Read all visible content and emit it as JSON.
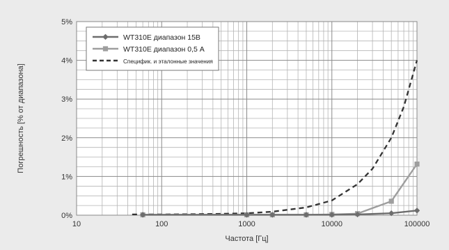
{
  "chart_data": {
    "type": "line",
    "title": "",
    "xlabel": "Частота [Гц]",
    "ylabel": "Погрешность [% от диапазона]",
    "xscale": "log",
    "xlim": [
      10,
      100000
    ],
    "ylim": [
      0,
      5
    ],
    "x_ticks": [
      10,
      100,
      1000,
      10000,
      100000
    ],
    "x_tick_labels": [
      "10",
      "100",
      "1000",
      "10000",
      "100000"
    ],
    "y_ticks": [
      0,
      1,
      2,
      3,
      4,
      5
    ],
    "y_tick_labels": [
      "0%",
      "1%",
      "2%",
      "3%",
      "4%",
      "5%"
    ],
    "grid": true,
    "legend_position": "top-left",
    "series": [
      {
        "name": "WT310E диапазон 15В",
        "color": "#6d6d6d",
        "marker": "diamond",
        "line_style": "solid",
        "x": [
          60,
          1000,
          2000,
          5000,
          10000,
          20000,
          50000,
          100000
        ],
        "y": [
          0.01,
          0.01,
          0.01,
          0.01,
          0.01,
          0.02,
          0.05,
          0.12
        ]
      },
      {
        "name": "WT310E диапазон 0,5 А",
        "color": "#9e9e9e",
        "marker": "square",
        "line_style": "solid",
        "x": [
          60,
          1000,
          2000,
          5000,
          10000,
          20000,
          50000,
          100000
        ],
        "y": [
          0.01,
          0.01,
          0.01,
          0.01,
          0.02,
          0.04,
          0.36,
          1.32
        ]
      },
      {
        "name": "Специфик. и эталонные значения",
        "color": "#333333",
        "marker": "none",
        "line_style": "dashed",
        "x": [
          45,
          100,
          200,
          500,
          1000,
          2000,
          5000,
          10000,
          20000,
          30000,
          50000,
          70000,
          100000
        ],
        "y": [
          0.02,
          0.02,
          0.025,
          0.035,
          0.05,
          0.09,
          0.2,
          0.38,
          0.8,
          1.2,
          2.0,
          2.8,
          4.0
        ]
      }
    ]
  }
}
